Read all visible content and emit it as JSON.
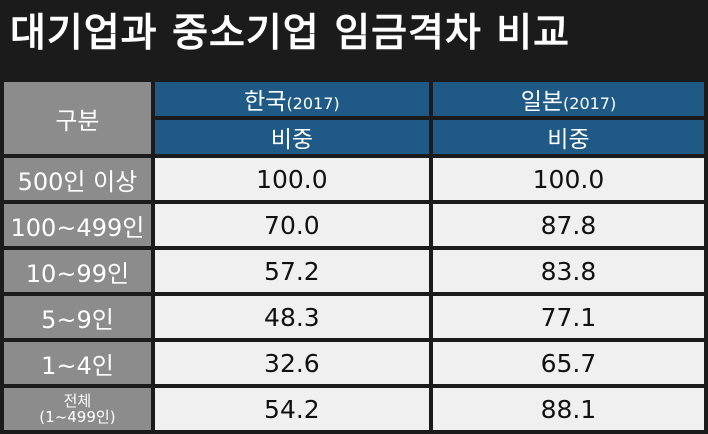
{
  "title": "대기업과 중소기업 임금격차 비교",
  "chart_data": {
    "type": "table",
    "header": {
      "label": "구분",
      "korea": "한국",
      "korea_year": "(2017)",
      "japan": "일본",
      "japan_year": "(2017)",
      "korea_sub": "비중",
      "japan_sub": "비중"
    },
    "rows": [
      {
        "label": "500인 이상",
        "label2": "",
        "korea": "100.0",
        "japan": "100.0"
      },
      {
        "label": "100~499인",
        "label2": "",
        "korea": "70.0",
        "japan": "87.8"
      },
      {
        "label": "10~99인",
        "label2": "",
        "korea": "57.2",
        "japan": "83.8"
      },
      {
        "label": "5~9인",
        "label2": "",
        "korea": "48.3",
        "japan": "77.1"
      },
      {
        "label": "1~4인",
        "label2": "",
        "korea": "32.6",
        "japan": "65.7"
      },
      {
        "label": "전체",
        "label2": "(1~499인)",
        "korea": "54.2",
        "japan": "88.1"
      }
    ]
  }
}
